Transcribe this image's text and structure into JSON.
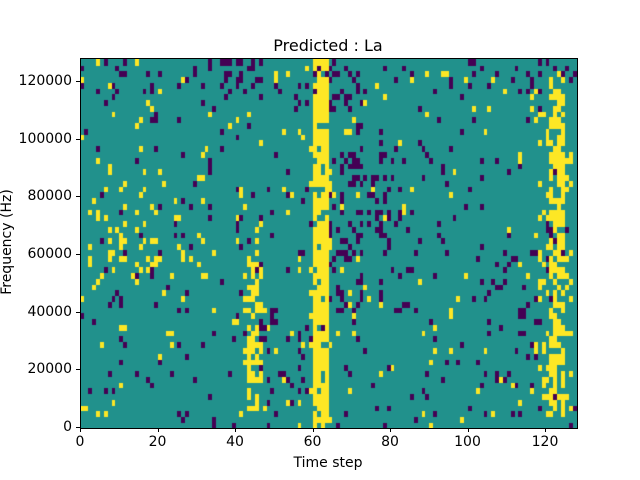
{
  "figure": {
    "background": "#ffffff"
  },
  "chart_data": {
    "type": "heatmap",
    "title": "Predicted : La",
    "xlabel": "Time step",
    "ylabel": "Frequency (Hz)",
    "x_range": [
      0,
      128
    ],
    "y_range": [
      0,
      128000
    ],
    "x_ticks": [
      0,
      20,
      40,
      60,
      80,
      100,
      120
    ],
    "y_ticks": [
      0,
      20000,
      40000,
      60000,
      80000,
      100000,
      120000
    ],
    "legend_position": "none",
    "grid_lines": false,
    "grid": {
      "cols": 128,
      "rows": 64
    },
    "colors": {
      "mid": "#21918c",
      "high": "#fde725",
      "low": "#440154",
      "spine": "#000000",
      "text": "#000000"
    },
    "noise": {
      "seed": 1337,
      "low_density": 0.035,
      "high_density": 0.022
    },
    "bands": [
      {
        "x0": 60,
        "x1": 64,
        "y0": 0,
        "y1": 128000,
        "color": "high",
        "p": 0.85
      },
      {
        "x0": 59,
        "x1": 65,
        "y0": 0,
        "y1": 128000,
        "color": "high",
        "p": 0.12
      },
      {
        "x0": 121,
        "x1": 125,
        "y0": 4000,
        "y1": 124000,
        "color": "high",
        "p": 0.58
      },
      {
        "x0": 117,
        "x1": 127,
        "y0": 4000,
        "y1": 122000,
        "color": "high",
        "p": 0.13
      },
      {
        "x0": 43,
        "x1": 46,
        "y0": 4000,
        "y1": 70000,
        "color": "high",
        "p": 0.45
      },
      {
        "x0": 42,
        "x1": 47,
        "y0": 16000,
        "y1": 56000,
        "color": "high",
        "p": 0.18
      },
      {
        "x0": 64,
        "x1": 73,
        "y0": 40000,
        "y1": 126000,
        "color": "low",
        "p": 0.17
      },
      {
        "x0": 72,
        "x1": 83,
        "y0": 40000,
        "y1": 100000,
        "color": "low",
        "p": 0.12
      },
      {
        "x0": 46,
        "x1": 59,
        "y0": 0,
        "y1": 42000,
        "color": "low",
        "p": 0.09
      },
      {
        "x0": 0,
        "x1": 128,
        "y0": 116000,
        "y1": 128000,
        "color": "low",
        "p": 0.07
      },
      {
        "x0": 106,
        "x1": 118,
        "y0": 18000,
        "y1": 62000,
        "color": "low",
        "p": 0.08
      },
      {
        "x0": 2,
        "x1": 32,
        "y0": 50000,
        "y1": 92000,
        "color": "high",
        "p": 0.05
      },
      {
        "x0": 6,
        "x1": 20,
        "y0": 55000,
        "y1": 75000,
        "color": "high",
        "p": 0.06
      },
      {
        "x0": 84,
        "x1": 96,
        "y0": 60000,
        "y1": 100000,
        "color": "low",
        "p": 0.05
      }
    ]
  }
}
